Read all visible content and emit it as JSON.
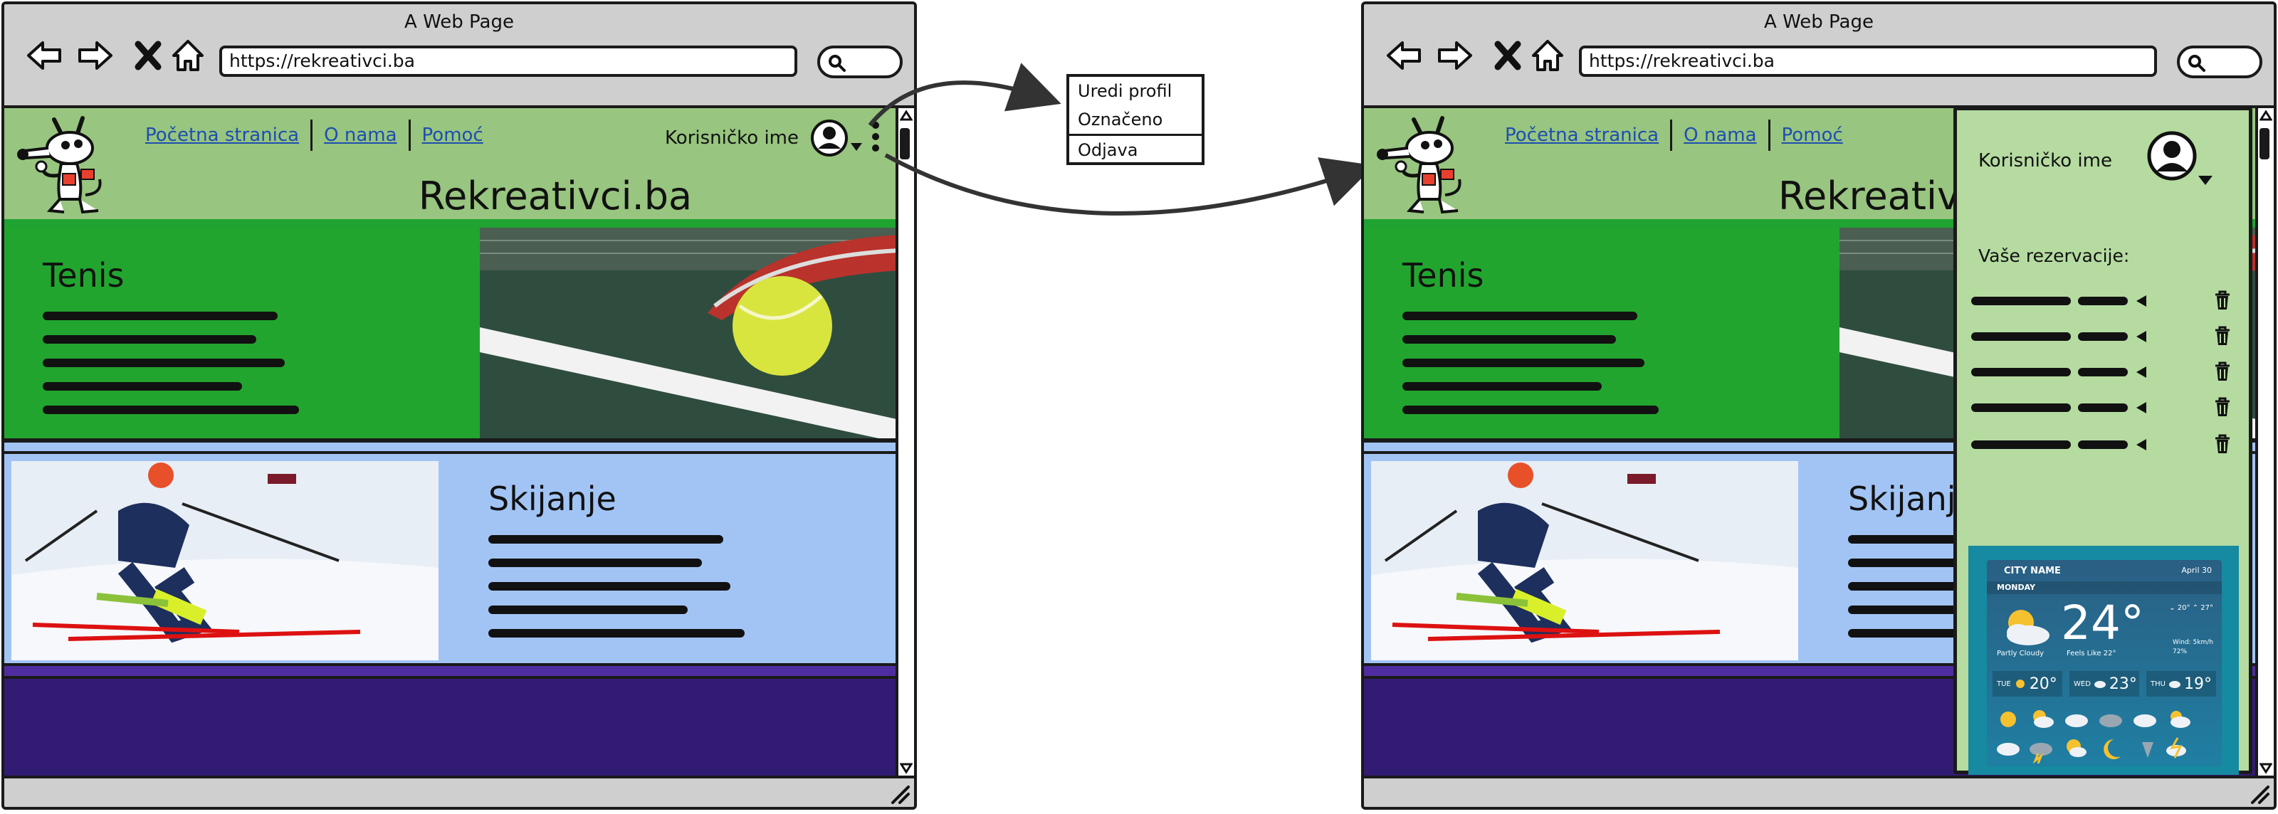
{
  "window": {
    "title": "A Web Page",
    "url": "https://rekreativci.ba"
  },
  "nav": {
    "home": "Početna stranica",
    "about": "O nama",
    "help": "Pomoć"
  },
  "user": {
    "name": "Korisničko ime"
  },
  "site": {
    "title": "Rekreativci.ba"
  },
  "sections": {
    "tennis": "Tenis",
    "skiing": "Skijanje"
  },
  "dropdown": {
    "items": [
      "Uredi profil",
      "Označeno",
      "Odjava"
    ]
  },
  "panel": {
    "user_name": "Korisničko ime",
    "reservations_title": "Vaše rezervacije:"
  },
  "weather": {
    "city": "CITY NAME",
    "date": "April 30",
    "day": "MONDAY",
    "temp": "24°",
    "condition": "Partly Cloudy",
    "feels_like": "Feels Like 22°",
    "minmax": "⌄ 20°  ⌃ 27°",
    "wind": "Wind: 5km/h",
    "humidity": "72%",
    "forecast": [
      {
        "day": "TUE",
        "temp": "20°"
      },
      {
        "day": "WED",
        "temp": "23°"
      },
      {
        "day": "THU",
        "temp": "19°"
      }
    ]
  },
  "colors": {
    "header_green": "#98c57f",
    "tennis_green": "#22a52f",
    "sky_blue": "#a2c4f5",
    "purple": "#321c73",
    "panel_green": "#b5dba1"
  },
  "icons": [
    "back-arrow-icon",
    "forward-arrow-icon",
    "close-icon",
    "home-icon",
    "search-icon",
    "avatar-icon",
    "chevron-down-icon",
    "kebab-menu-icon",
    "trash-icon",
    "resize-grip-icon"
  ]
}
